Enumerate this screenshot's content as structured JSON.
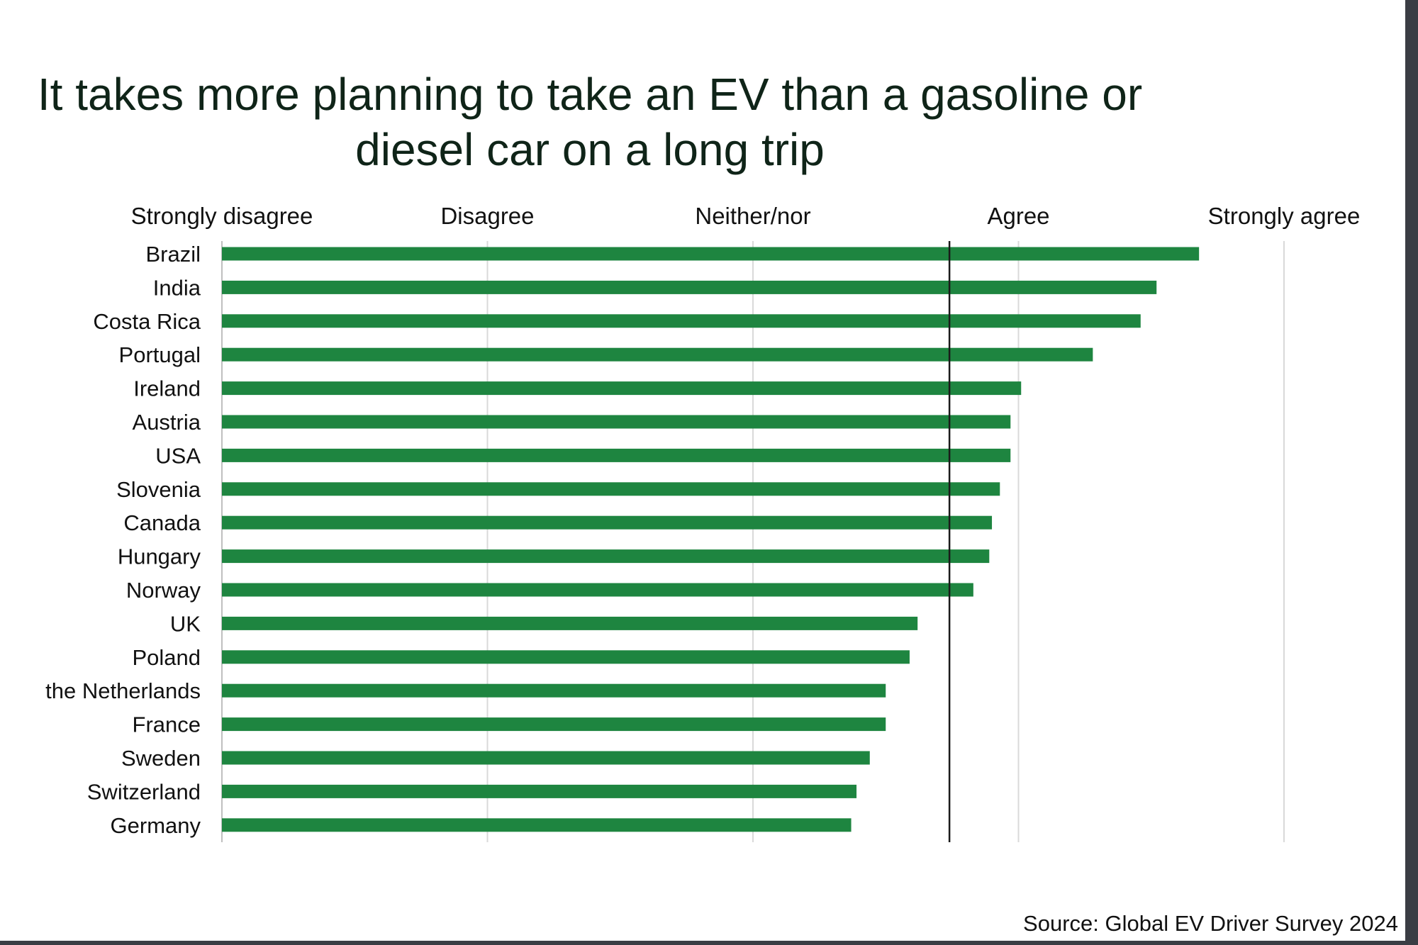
{
  "chart_data": {
    "type": "bar",
    "orientation": "horizontal",
    "title": "It takes more planning to take an EV than a gasoline or diesel car on a long trip",
    "title_lines": [
      "It takes more planning to take an EV than a gasoline or",
      "diesel car on a long trip"
    ],
    "scale_labels": [
      "Strongly disagree",
      "Disagree",
      "Neither/nor",
      "Agree",
      "Strongly agree"
    ],
    "xlim": [
      1,
      5
    ],
    "reference_value": 3.74,
    "grid": true,
    "categories": [
      "Brazil",
      "India",
      "Costa Rica",
      "Portugal",
      "Ireland",
      "Austria",
      "USA",
      "Slovenia",
      "Canada",
      "Hungary",
      "Norway",
      "UK",
      "Poland",
      "the Netherlands",
      "France",
      "Sweden",
      "Switzerland",
      "Germany"
    ],
    "values": [
      4.68,
      4.52,
      4.46,
      4.28,
      4.01,
      3.97,
      3.97,
      3.93,
      3.9,
      3.89,
      3.83,
      3.62,
      3.59,
      3.5,
      3.5,
      3.44,
      3.39,
      3.37
    ],
    "bar_color": "#1e8540",
    "source": "Source: Global EV Driver Survey 2024"
  }
}
